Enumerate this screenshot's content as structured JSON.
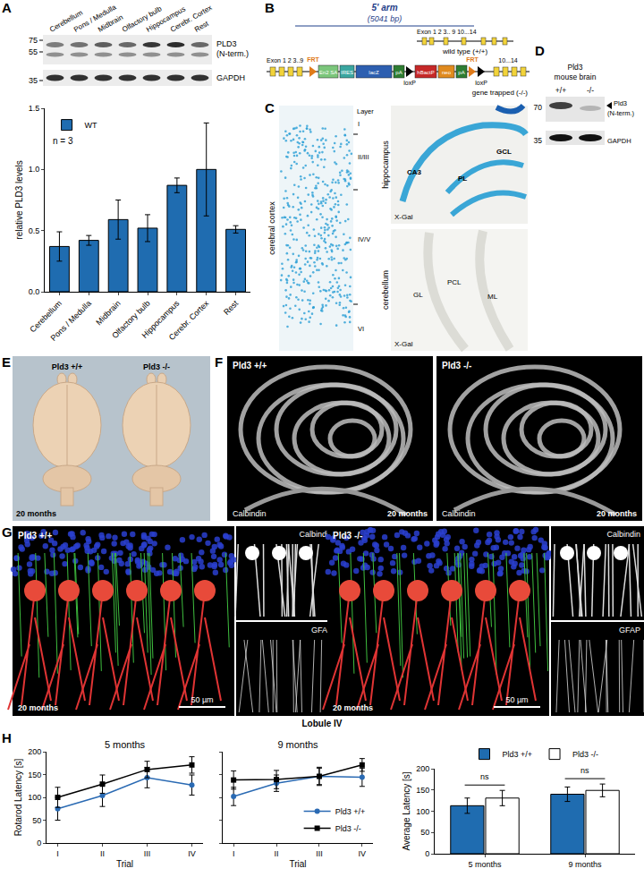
{
  "panels": {
    "A": {
      "letter": "A",
      "blot": {
        "lanes": [
          "Cerebellum",
          "Pons / Medulla",
          "Midbrain",
          "Olfactory bulb",
          "Hippocampus",
          "Cerebr. Cortex",
          "Rest"
        ],
        "markers": [
          75,
          55,
          35
        ],
        "bands": [
          [
            "PLD3",
            "(N-term.)"
          ],
          [
            "GAPDH"
          ]
        ]
      }
    },
    "B": {
      "letter": "B",
      "arm": "5' arm",
      "arm_size": "(5041 bp)",
      "wt_exons": "Exon 1 2  3..  9 10...14",
      "wild_type": "wild type (+/+)",
      "trap_exons_left": "Exon 1 2 3..9",
      "trap_exons_right": "10...14",
      "cassette": [
        "FRT",
        "En2 SA",
        "IRES",
        "lacZ",
        "pA",
        "loxP",
        "hBactP",
        "neo",
        "pA",
        "FRT",
        "loxP"
      ],
      "trapped": "gene trapped (-/-)"
    },
    "C": {
      "letter": "C",
      "cortex": {
        "label": "cerebral cortex",
        "layer_title": "Layer",
        "layers": [
          "I",
          "II/III",
          "IV/V",
          "VI"
        ]
      },
      "hippocampus": {
        "label": "hippocampus",
        "stain": "X-Gal",
        "regions": [
          "CA3",
          "PL",
          "GCL"
        ]
      },
      "cerebellum": {
        "label": "cerebellum",
        "stain": "X-Gal",
        "regions": [
          "GL",
          "PCL",
          "ML"
        ]
      }
    },
    "D": {
      "letter": "D",
      "title": [
        "Pld3",
        "mouse brain"
      ],
      "lanes": [
        "+/+",
        "-/-"
      ],
      "markers": [
        70,
        35
      ],
      "bands": [
        [
          "Pld3",
          "(N-term.)"
        ],
        [
          "GAPDH"
        ]
      ]
    },
    "E": {
      "letter": "E",
      "genotypes": [
        "Pld3 +/+",
        "Pld3 -/-"
      ],
      "age": "20 months"
    },
    "F": {
      "letter": "F",
      "images": [
        {
          "genotype": "Pld3 +/+",
          "stain": "Calbindin",
          "age": "20 months"
        },
        {
          "genotype": "Pld3 -/-",
          "stain": "Calbindin",
          "age": "20 months"
        }
      ]
    },
    "G": {
      "letter": "G",
      "images": [
        {
          "genotype": "Pld3 +/+",
          "age": "20 months",
          "scale": "50 µm",
          "insets": [
            "Calbindin",
            "GFAP"
          ]
        },
        {
          "genotype": "Pld3 -/-",
          "age": "20 months",
          "scale": "50 µm",
          "insets": [
            "Calbindin",
            "GFAP"
          ]
        }
      ],
      "region": "Lobule IV"
    },
    "H": {
      "letter": "H"
    }
  },
  "chart_data": [
    {
      "type": "bar",
      "categories": [
        "Cerebellum",
        "Pons / Medulla",
        "Midbrain",
        "Olfactory bulb",
        "Hippocampus",
        "Cerebr. Cortex",
        "Rest"
      ],
      "y_label": "relative PLD3 levels",
      "series": [
        {
          "name": "WT",
          "color": "#1f6cb0",
          "values": [
            0.37,
            0.42,
            0.59,
            0.52,
            0.87,
            1.0,
            0.51
          ],
          "errors": [
            0.12,
            0.04,
            0.16,
            0.11,
            0.06,
            0.38,
            0.03
          ]
        }
      ],
      "ylim": [
        0,
        1.5
      ],
      "yticks": [
        {
          "value": 0,
          "label": "0.0"
        },
        0.5,
        {
          "value": 1,
          "label": "1.0"
        },
        1.5
      ],
      "legend": "top left",
      "annotations": [
        "n = 3"
      ]
    },
    {
      "type": "line",
      "title": "5 months",
      "x_label": "Trial",
      "y_label": "Rotarod Latency [s]",
      "categories": [
        "I",
        "II",
        "III",
        "IV"
      ],
      "series": [
        {
          "name": "Pld3 +/+",
          "color": "#2a6ab3",
          "marker": "circle",
          "values": [
            75,
            104,
            143,
            127
          ],
          "errors": [
            25,
            24,
            22,
            22
          ]
        },
        {
          "name": "Pld3 -/-",
          "color": "#000000",
          "marker": "square",
          "values": [
            100,
            129,
            161,
            171
          ],
          "errors": [
            22,
            20,
            18,
            18
          ]
        }
      ],
      "ylim": [
        0,
        200
      ],
      "yticks": [
        0,
        50,
        100,
        150,
        200
      ]
    },
    {
      "type": "line",
      "title": "9 months",
      "x_label": "Trial",
      "categories": [
        "I",
        "II",
        "III",
        "IV"
      ],
      "series": [
        {
          "name": "Pld3 +/+",
          "color": "#2a6ab3",
          "marker": "circle",
          "values": [
            102,
            131,
            146,
            144
          ],
          "errors": [
            20,
            18,
            20,
            20
          ]
        },
        {
          "name": "Pld3 -/-",
          "color": "#000000",
          "marker": "square",
          "values": [
            138,
            139,
            146,
            171
          ],
          "errors": [
            20,
            20,
            18,
            14
          ]
        }
      ],
      "ylim": [
        0,
        200
      ],
      "yticks": [
        0,
        50,
        100,
        150,
        200
      ],
      "tick_labels": "x",
      "legend": "bottom right"
    },
    {
      "type": "bar",
      "categories": [
        "5 months",
        "9 months"
      ],
      "y_label": "Average Latency [s]",
      "series": [
        {
          "name": "Pld3 +/+",
          "color": "#1f6cb0",
          "values": [
            113,
            140
          ],
          "errors": [
            18,
            17
          ]
        },
        {
          "name": "Pld3 -/-",
          "color": "#ffffff",
          "values": [
            131,
            149
          ],
          "errors": [
            18,
            15
          ]
        }
      ],
      "ylim": [
        0,
        200
      ],
      "yticks": [
        0,
        50,
        100,
        150,
        200
      ],
      "legend": "top",
      "annotations": [
        {
          "text": "ns",
          "category": "5 months"
        },
        {
          "text": "ns",
          "category": "9 months"
        }
      ]
    }
  ]
}
